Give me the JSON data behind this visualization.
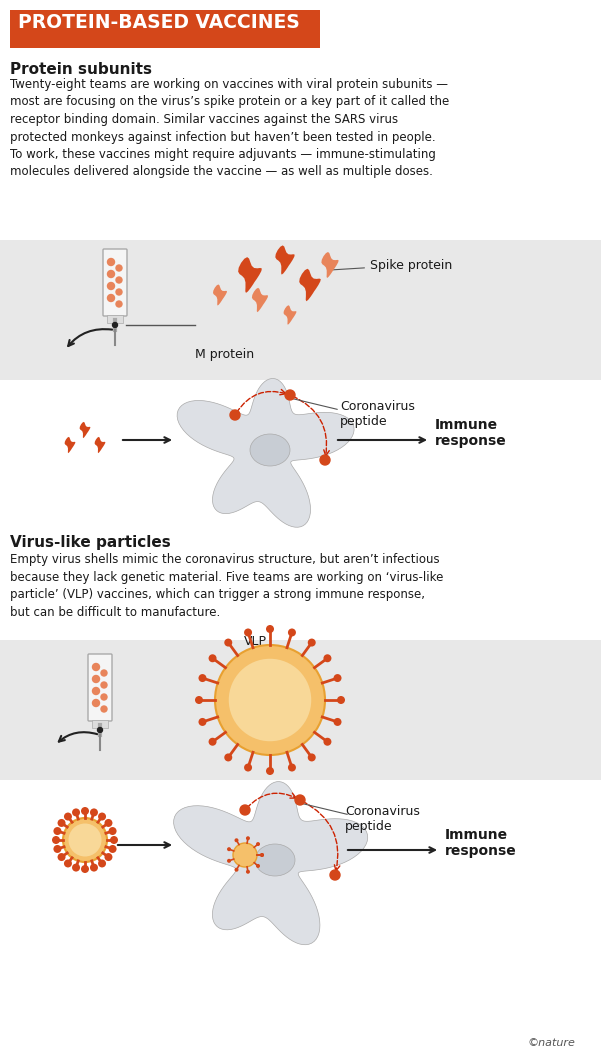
{
  "title": "PROTEIN-BASED VACCINES",
  "title_bg_color": "#d4471a",
  "title_text_color": "#ffffff",
  "section1_heading": "Protein subunits",
  "section1_body": "Twenty-eight teams are working on vaccines with viral protein subunits —\nmost are focusing on the virus’s spike protein or a key part of it called the\nreceptor binding domain. Similar vaccines against the SARS virus\nprotected monkeys against infection but haven’t been tested in people.\nTo work, these vaccines might require adjuvants — immune-stimulating\nmolecules delivered alongside the vaccine — as well as multiple doses.",
  "section2_heading": "Virus-like particles",
  "section2_body": "Empty virus shells mimic the coronavirus structure, but aren’t infectious\nbecause they lack genetic material. Five teams are working on ‘virus-like\nparticle’ (VLP) vaccines, which can trigger a strong immune response,\nbut can be difficult to manufacture.",
  "label_spike_protein": "Spike protein",
  "label_m_protein": "M protein",
  "label_coronavirus_peptide1": "Coronavirus\npeptide",
  "label_immune_response1": "Immune\nresponse",
  "label_vlp": "VLP",
  "label_coronavirus_peptide2": "Coronavirus\npeptide",
  "label_immune_response2": "Immune\nresponse",
  "orange_dark": "#d4471a",
  "orange_light": "#e8845a",
  "orange_pale": "#f5b99a",
  "gray_bg": "#e8e8e8",
  "gray_cell": "#c8cdd4",
  "gray_cell_light": "#dde0e5",
  "bg_color": "#ffffff",
  "nature_credit": "©nature",
  "font_color": "#1a1a1a"
}
